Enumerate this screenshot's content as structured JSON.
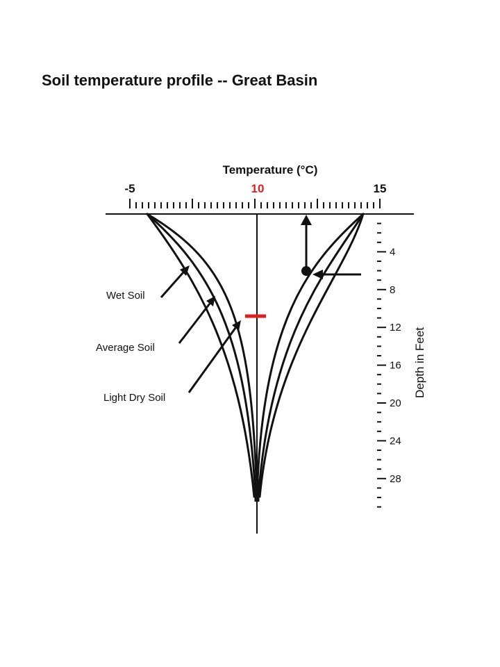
{
  "title": "Soil temperature profile -- Great Basin",
  "temperature_axis": {
    "title": "Temperature (°C)",
    "labels": [
      {
        "text": "-5",
        "value": -5,
        "color": "#111111"
      },
      {
        "text": "10",
        "value": 10,
        "color": "#e01e1e"
      },
      {
        "text": "15",
        "value": 15,
        "color": "#111111"
      }
    ]
  },
  "depth_axis": {
    "title": "Depth in Feet",
    "labels": [
      "4",
      "8",
      "12",
      "16",
      "20",
      "24",
      "28"
    ]
  },
  "callouts": [
    {
      "label": "Wet Soil"
    },
    {
      "label": "Average Soil"
    },
    {
      "label": "Light Dry Soil"
    }
  ],
  "colors": {
    "ink": "#111111",
    "highlight": "#e01e1e",
    "background": "#ffffff"
  }
}
